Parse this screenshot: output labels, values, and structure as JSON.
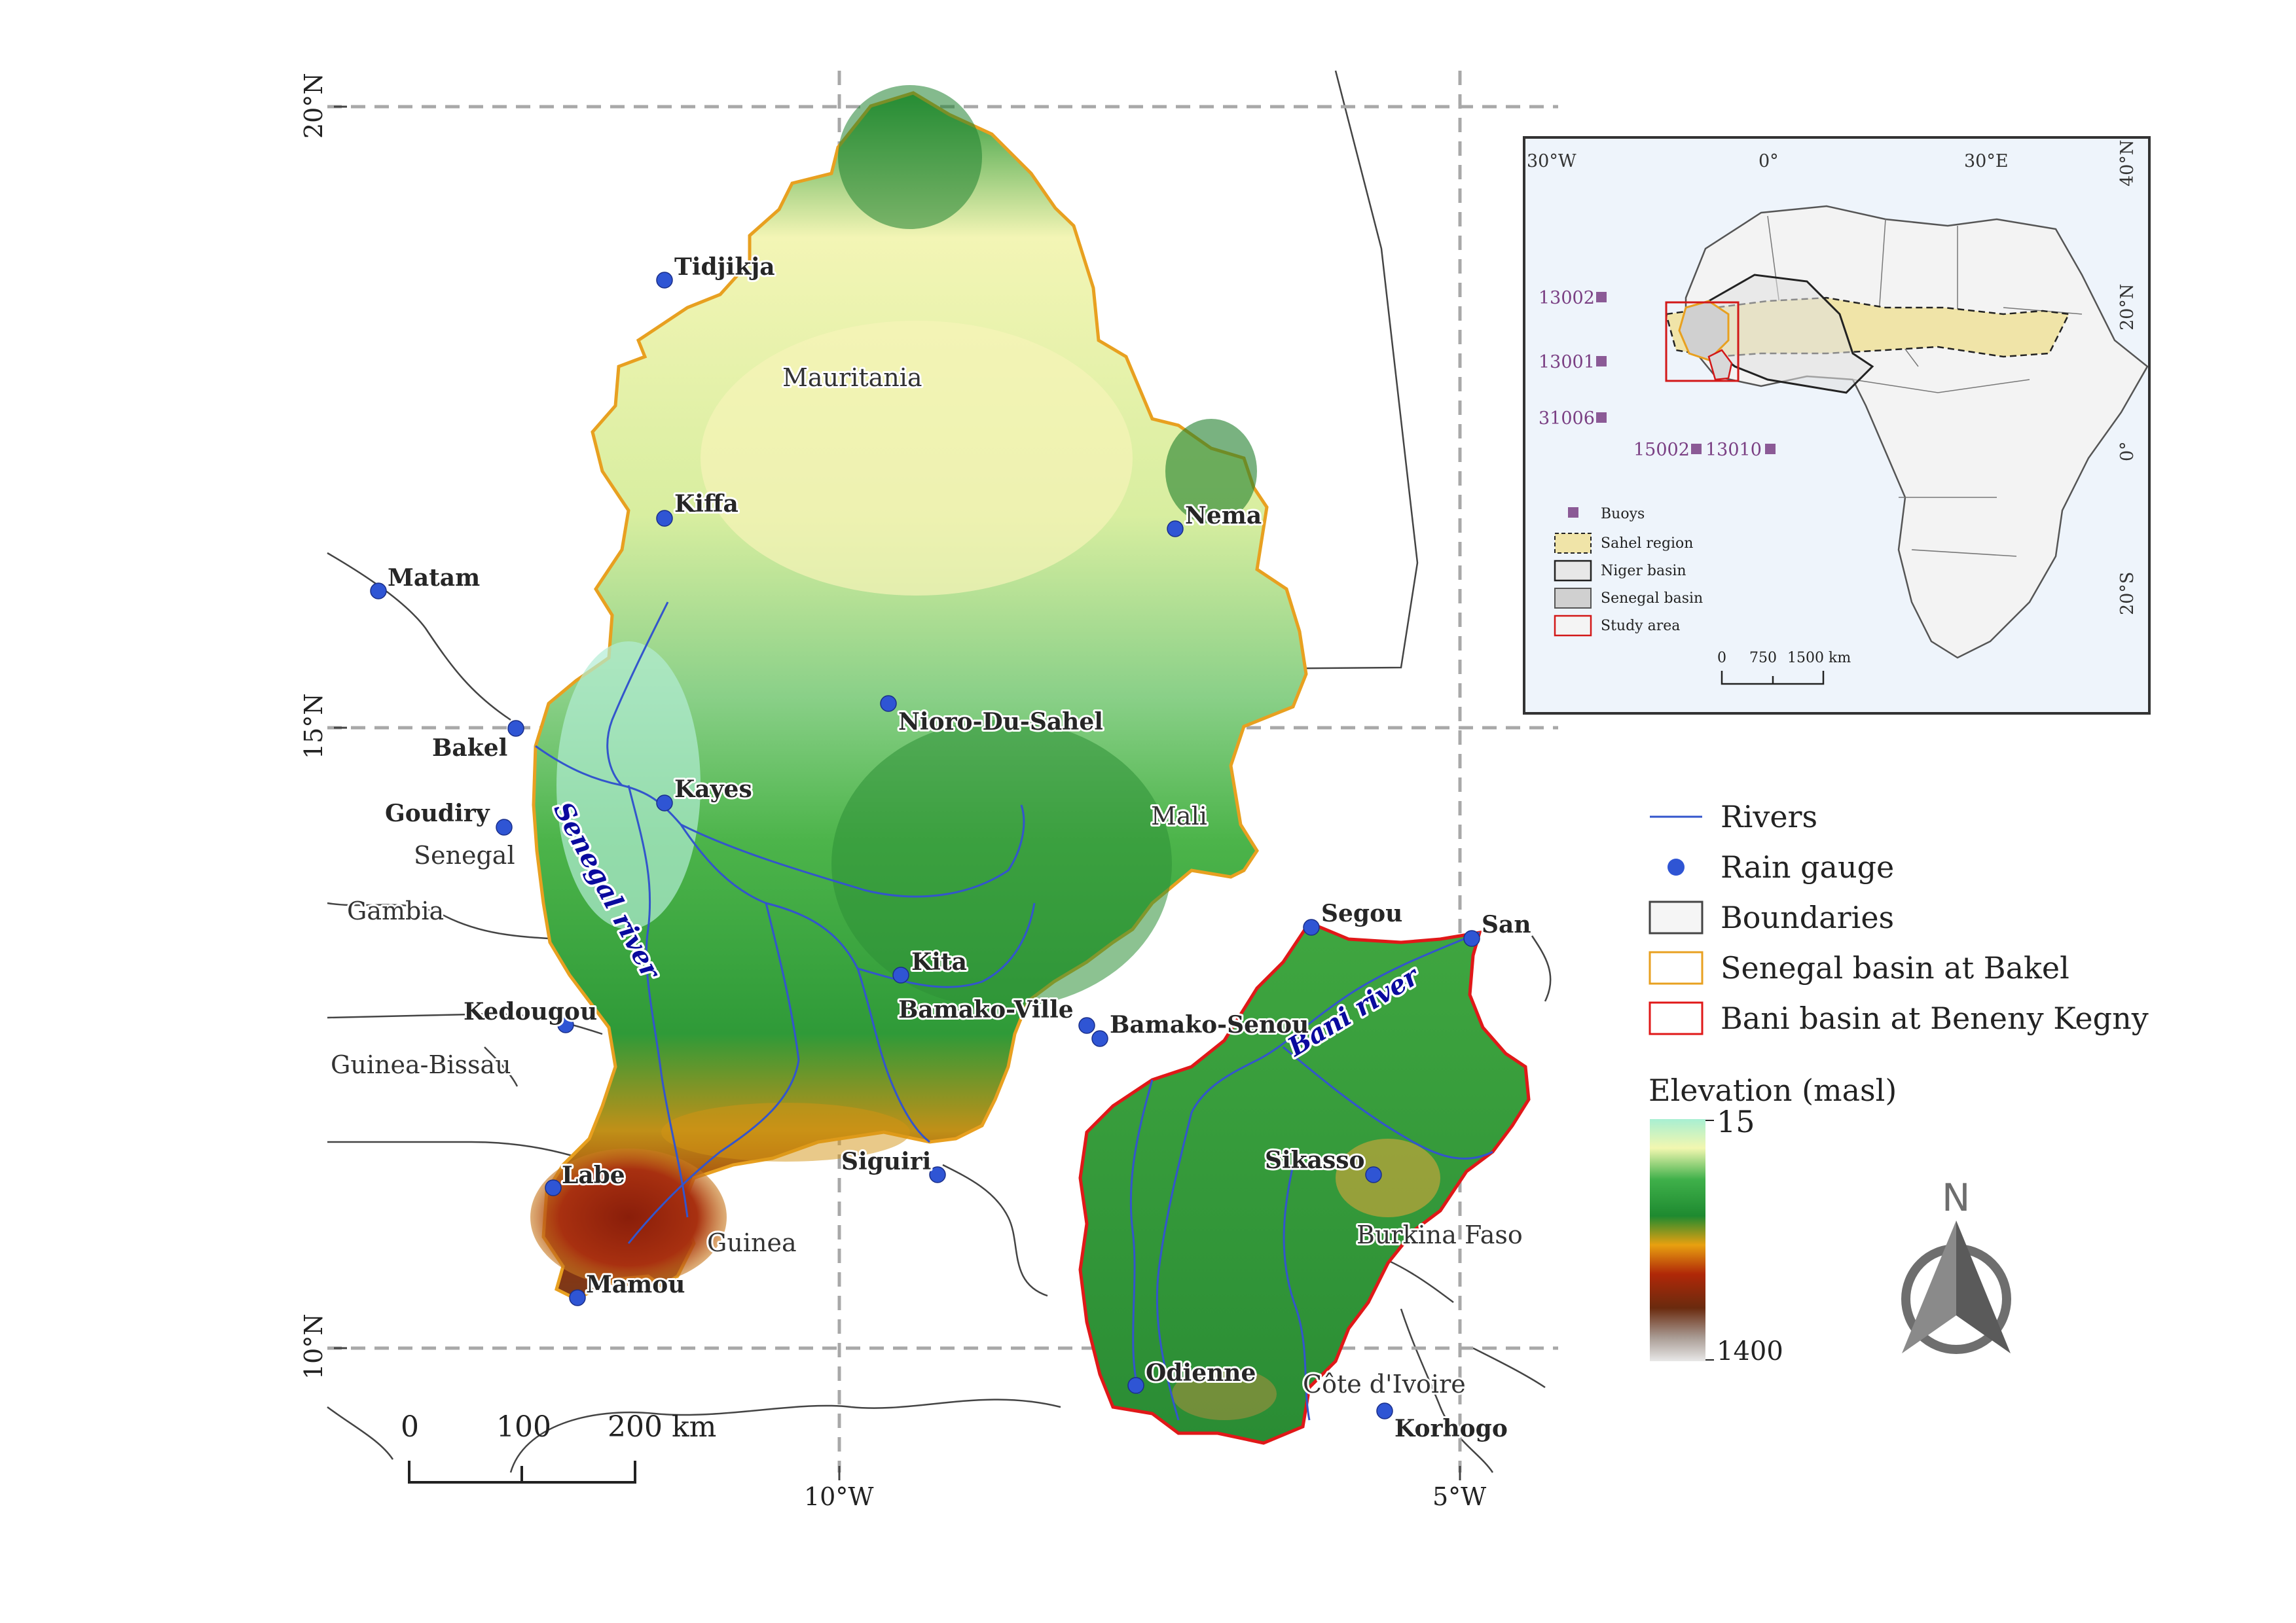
{
  "graticule": {
    "lat_labels": [
      "20°N",
      "15°N",
      "10°N"
    ],
    "lon_labels": [
      "10°W",
      "5°W"
    ]
  },
  "countries": [
    "Mauritania",
    "Mali",
    "Senegal",
    "Gambia",
    "Guinea-Bissau",
    "Guinea",
    "Burkina Faso",
    "Côte d'Ivoire"
  ],
  "rain_gauges": [
    "Tidjikja",
    "Kiffa",
    "Nema",
    "Matam",
    "Bakel",
    "Goudiry",
    "Kayes",
    "Nioro-Du-Sahel",
    "Kedougou",
    "Kita",
    "Bamako-Ville",
    "Bamako-Senou",
    "Segou",
    "San",
    "Siguiri",
    "Labe",
    "Mamou",
    "Sikasso",
    "Odienne",
    "Korhogo"
  ],
  "rivers": {
    "senegal": "Senegal river",
    "bani": "Bani river"
  },
  "legend": {
    "rivers": "Rivers",
    "rain_gauge": "Rain gauge",
    "boundaries": "Boundaries",
    "senegal_basin": "Senegal basin at Bakel",
    "bani_basin": "Bani basin at Beneny Kegny",
    "elevation_title": "Elevation (masl)",
    "elevation_min": "15",
    "elevation_max": "1400"
  },
  "scale_bar": {
    "labels": [
      "0",
      "100",
      "200 km"
    ]
  },
  "north_arrow": {
    "label": "N"
  },
  "inset": {
    "top_labels": [
      "30°W",
      "0°",
      "30°E"
    ],
    "right_labels": [
      "40°N",
      "20°N",
      "0°",
      "20°S"
    ],
    "buoys": [
      "13002",
      "13001",
      "31006",
      "15002",
      "13010"
    ],
    "legend": [
      "Buoys",
      "Sahel region",
      "Niger basin",
      "Senegal basin",
      "Study area"
    ],
    "scale_labels": [
      "0",
      "750",
      "1500 km"
    ]
  },
  "colors": {
    "river": "#3355cc",
    "gauge": "#2f55d4",
    "senegal_basin_outline": "#e8a020",
    "bani_basin_outline": "#e01818",
    "buoy": "#8b5a96",
    "sahel": "#f0e4a8",
    "ocean": "#eef4fb"
  }
}
